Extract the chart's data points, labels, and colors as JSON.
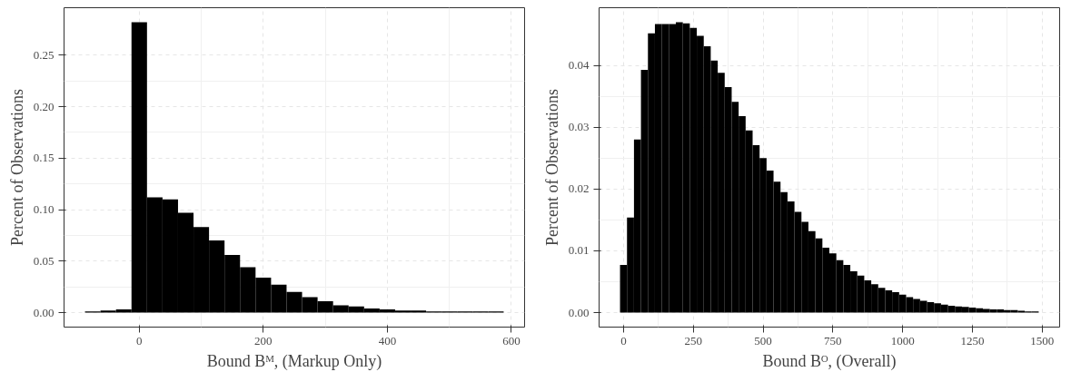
{
  "chart_data": [
    {
      "type": "histogram",
      "xlabel": "Bound Bᴹ, (Markup Only)",
      "ylabel": "Percent of Observations",
      "color": "#000000",
      "bins": [
        -87.5,
        -62.5,
        -37.5,
        -12.5,
        12.5,
        37.5,
        62.5,
        87.5,
        112.5,
        137.5,
        162.5,
        187.5,
        212.5,
        237.5,
        262.5,
        287.5,
        312.5,
        337.5,
        362.5,
        387.5,
        412.5,
        437.5,
        462.5,
        487.5,
        512.5,
        537.5,
        562.5,
        587.5
      ],
      "values": [
        0.001,
        0.002,
        0.003,
        0.282,
        0.112,
        0.11,
        0.097,
        0.083,
        0.07,
        0.056,
        0.044,
        0.034,
        0.027,
        0.02,
        0.015,
        0.011,
        0.007,
        0.006,
        0.004,
        0.003,
        0.002,
        0.002,
        0.001,
        0.001,
        0.001,
        0.001,
        0.001
      ],
      "xlim": [
        -121.25,
        621.25
      ],
      "ylim": [
        -0.0141,
        0.2961
      ],
      "xticks": [
        0,
        200,
        400,
        600
      ],
      "yticks": [
        {
          "value": 0,
          "label": "0.00"
        },
        {
          "value": 0.05,
          "label": "0.05"
        },
        {
          "value": 0.1,
          "label": "0.10"
        },
        {
          "value": 0.15,
          "label": "0.15"
        },
        {
          "value": 0.2,
          "label": "0.20"
        },
        {
          "value": 0.25,
          "label": "0.25"
        }
      ],
      "grid": true
    },
    {
      "type": "histogram",
      "xlabel": "Bound Bᴼ, (Overall)",
      "ylabel": "Percent of Observations",
      "color": "#000000",
      "bins": [
        -12.5,
        12.5,
        37.5,
        62.5,
        87.5,
        112.5,
        137.5,
        162.5,
        187.5,
        212.5,
        237.5,
        262.5,
        287.5,
        312.5,
        337.5,
        362.5,
        387.5,
        412.5,
        437.5,
        462.5,
        487.5,
        512.5,
        537.5,
        562.5,
        587.5,
        612.5,
        637.5,
        662.5,
        687.5,
        712.5,
        737.5,
        762.5,
        787.5,
        812.5,
        837.5,
        862.5,
        887.5,
        912.5,
        937.5,
        962.5,
        987.5,
        1012.5,
        1037.5,
        1062.5,
        1087.5,
        1112.5,
        1137.5,
        1162.5,
        1187.5,
        1212.5,
        1237.5,
        1262.5,
        1287.5,
        1312.5,
        1337.5,
        1362.5,
        1387.5,
        1412.5,
        1437.5,
        1462.5,
        1487.5
      ],
      "values": [
        0.0077,
        0.0154,
        0.028,
        0.0393,
        0.0452,
        0.0467,
        0.0467,
        0.0467,
        0.047,
        0.0468,
        0.0461,
        0.0448,
        0.0431,
        0.0408,
        0.0388,
        0.0365,
        0.0341,
        0.0318,
        0.0295,
        0.0271,
        0.025,
        0.023,
        0.0212,
        0.0195,
        0.018,
        0.0163,
        0.0147,
        0.0132,
        0.012,
        0.0105,
        0.0096,
        0.0085,
        0.0077,
        0.0067,
        0.006,
        0.0052,
        0.0046,
        0.004,
        0.0036,
        0.0033,
        0.0029,
        0.0025,
        0.0022,
        0.0019,
        0.0017,
        0.0015,
        0.0013,
        0.0011,
        0.001,
        0.0009,
        0.0008,
        0.0007,
        0.0006,
        0.0005,
        0.0005,
        0.0004,
        0.0004,
        0.0003,
        0.0002,
        0.0002
      ],
      "xlim": [
        -87.5,
        1562.5
      ],
      "ylim": [
        -0.00235,
        0.04935
      ],
      "xticks": [
        0,
        250,
        500,
        750,
        1000,
        1250,
        1500
      ],
      "yticks": [
        {
          "value": 0,
          "label": "0.00"
        },
        {
          "value": 0.01,
          "label": "0.01"
        },
        {
          "value": 0.02,
          "label": "0.02"
        },
        {
          "value": 0.03,
          "label": "0.03"
        },
        {
          "value": 0.04,
          "label": "0.04"
        }
      ],
      "grid": true
    }
  ]
}
